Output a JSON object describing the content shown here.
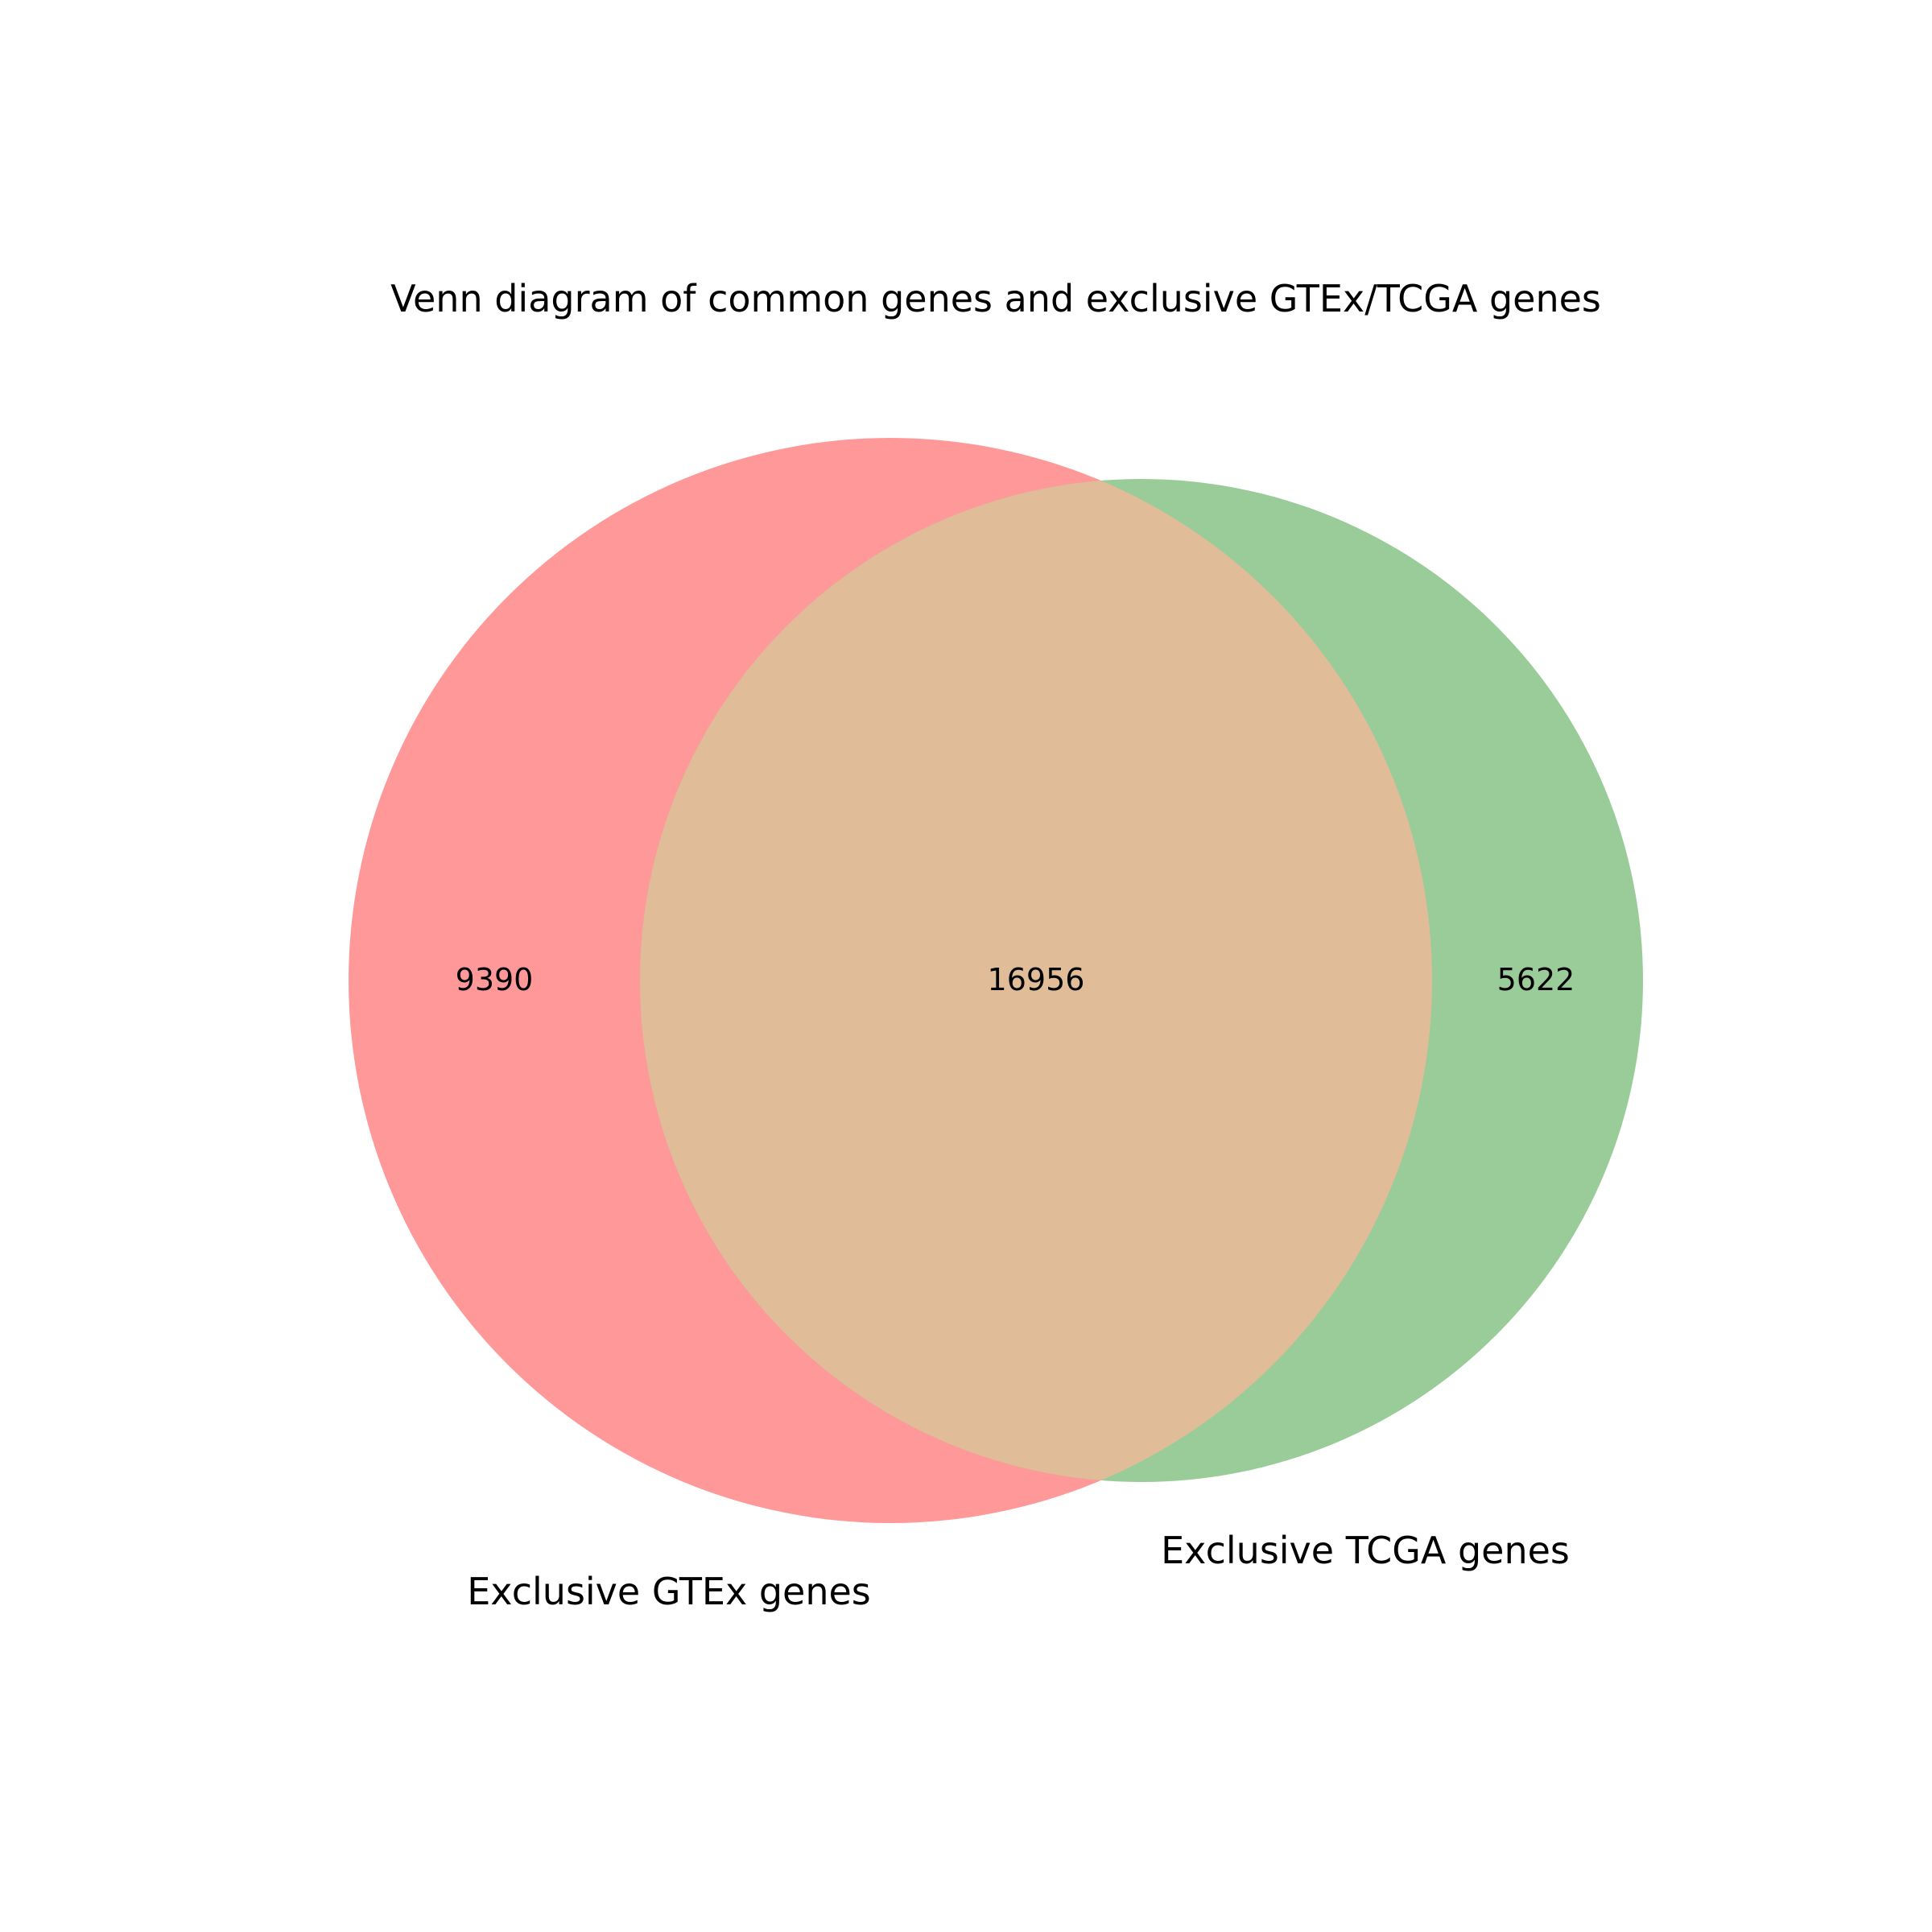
{
  "title": "Venn diagram of common genes and exclusive GTEx/TCGA genes",
  "sets": [
    {
      "name": "Exclusive GTEx genes",
      "label": "Exclusive GTEx genes",
      "color": "#ff9999"
    },
    {
      "name": "Exclusive TCGA genes",
      "label": "Exclusive TCGA genes",
      "color": "#99cc99"
    }
  ],
  "regions": {
    "gtex_only": "9390",
    "intersection": "16956",
    "tcga_only": "5622"
  },
  "intersection_color": "#e0bc98"
}
